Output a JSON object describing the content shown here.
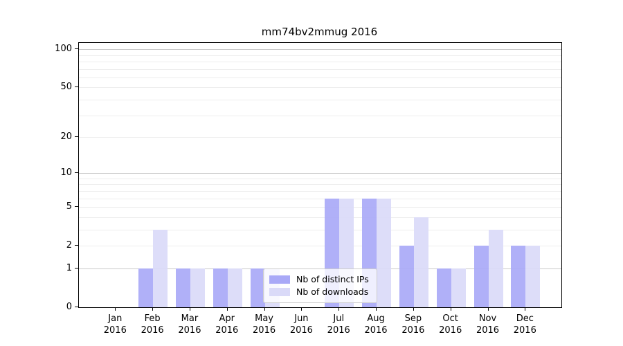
{
  "title": "mm74bv2mmug 2016",
  "chart_data": {
    "type": "bar",
    "title": "mm74bv2mmug 2016",
    "categories": [
      "Jan 2016",
      "Feb 2016",
      "Mar 2016",
      "Apr 2016",
      "May 2016",
      "Jun 2016",
      "Jul 2016",
      "Aug 2016",
      "Sep 2016",
      "Oct 2016",
      "Nov 2016",
      "Dec 2016"
    ],
    "x_months": [
      "Jan",
      "Feb",
      "Mar",
      "Apr",
      "May",
      "Jun",
      "Jul",
      "Aug",
      "Sep",
      "Oct",
      "Nov",
      "Dec"
    ],
    "x_year": "2016",
    "series": [
      {
        "name": "Nb of distinct IPs",
        "color": "#a9a9f7",
        "values": [
          0,
          1,
          1,
          1,
          1,
          0,
          6,
          6,
          2,
          1,
          2,
          2
        ]
      },
      {
        "name": "Nb of downloads",
        "color": "#dadaf8",
        "values": [
          0,
          3,
          1,
          1,
          1,
          0,
          6,
          6,
          4,
          1,
          3,
          2
        ]
      }
    ],
    "yscale": "log1p",
    "ylabel": "",
    "xlabel": "",
    "ytick_values": [
      0,
      1,
      2,
      5,
      10,
      20,
      50,
      100
    ],
    "minor_grid_values": [
      2,
      3,
      4,
      5,
      6,
      7,
      8,
      9,
      20,
      30,
      40,
      50,
      60,
      70,
      80,
      90
    ],
    "major_grid_values": [
      1,
      10,
      100
    ],
    "ylim": [
      0,
      113
    ],
    "grid": "on",
    "legend_position": "inside-bottom-center"
  }
}
